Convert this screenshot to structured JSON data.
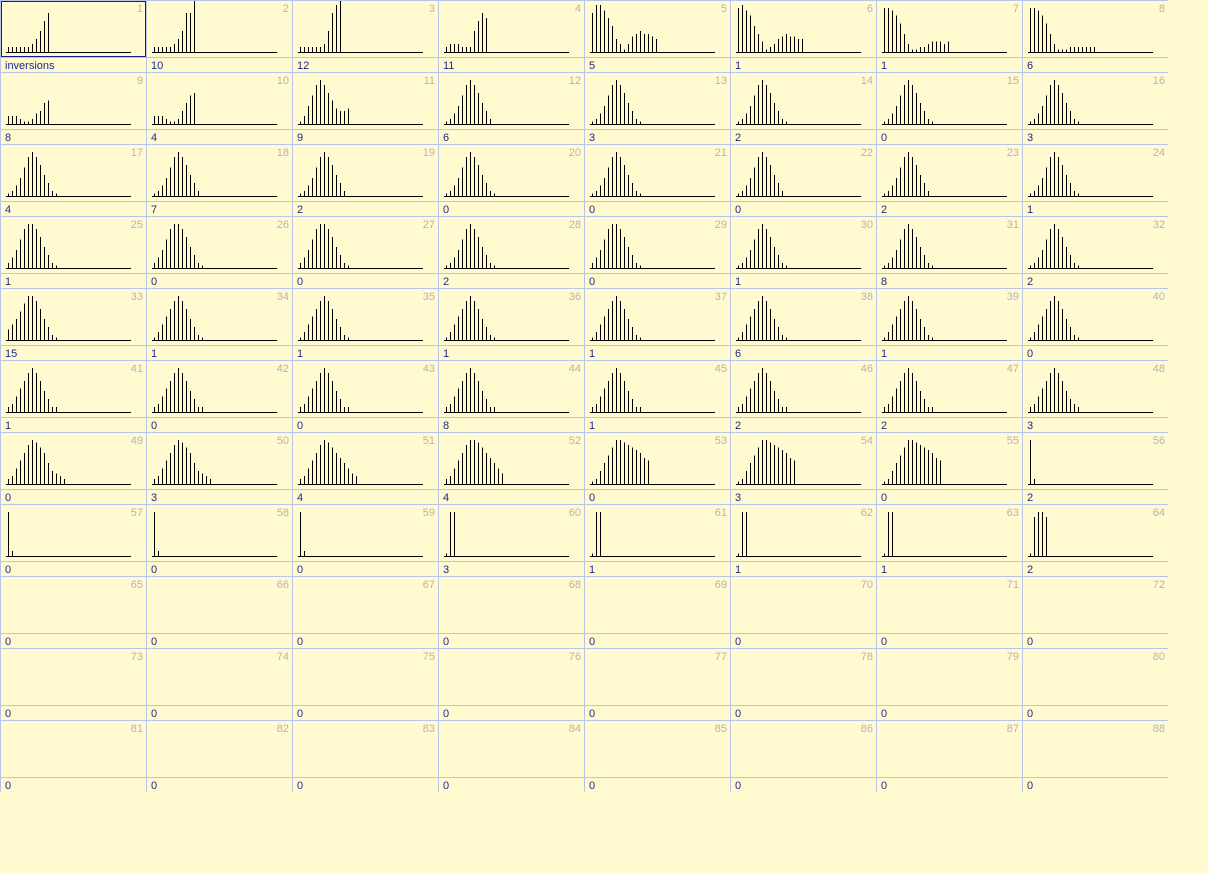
{
  "grid": {
    "columns": 8,
    "selected_index": 1,
    "cells": [
      {
        "index": "1",
        "value": "inversions",
        "bars": [
          2,
          2,
          2,
          2,
          2,
          2,
          3,
          5,
          8,
          12,
          15
        ]
      },
      {
        "index": "2",
        "value": "10",
        "bars": [
          2,
          2,
          2,
          2,
          2,
          3,
          5,
          8,
          15,
          15,
          20
        ]
      },
      {
        "index": "3",
        "value": "12",
        "bars": [
          2,
          2,
          2,
          2,
          2,
          2,
          3,
          8,
          15,
          18,
          20
        ]
      },
      {
        "index": "4",
        "value": "11",
        "bars": [
          2,
          3,
          3,
          3,
          2,
          2,
          2,
          8,
          12,
          15,
          13
        ]
      },
      {
        "index": "5",
        "value": "5",
        "bars": [
          15,
          18,
          18,
          16,
          13,
          10,
          5,
          3,
          1,
          3,
          6,
          7,
          8,
          7,
          7,
          6,
          5
        ]
      },
      {
        "index": "6",
        "value": "1",
        "bars": [
          17,
          18,
          16,
          14,
          10,
          7,
          4,
          1,
          2,
          3,
          5,
          6,
          7,
          6,
          6,
          5,
          5
        ]
      },
      {
        "index": "7",
        "value": "1",
        "bars": [
          17,
          17,
          16,
          14,
          11,
          7,
          3,
          1,
          1,
          2,
          2,
          3,
          4,
          4,
          4,
          3,
          4
        ]
      },
      {
        "index": "8",
        "value": "6",
        "bars": [
          17,
          17,
          16,
          14,
          11,
          7,
          3,
          1,
          1,
          1,
          2,
          2,
          2,
          2,
          2,
          2,
          2
        ]
      },
      {
        "index": "9",
        "value": "8",
        "bars": [
          3,
          3,
          3,
          2,
          1,
          1,
          2,
          4,
          5,
          8,
          9
        ]
      },
      {
        "index": "10",
        "value": "4",
        "bars": [
          3,
          3,
          3,
          2,
          1,
          1,
          2,
          5,
          8,
          11,
          12
        ]
      },
      {
        "index": "11",
        "value": "9",
        "bars": [
          1,
          3,
          7,
          11,
          15,
          17,
          15,
          12,
          9,
          6,
          5,
          5,
          6
        ]
      },
      {
        "index": "12",
        "value": "6",
        "bars": [
          1,
          2,
          4,
          7,
          11,
          15,
          17,
          15,
          12,
          8,
          5,
          2
        ]
      },
      {
        "index": "13",
        "value": "3",
        "bars": [
          1,
          2,
          4,
          7,
          11,
          15,
          17,
          15,
          12,
          8,
          5,
          2,
          1
        ]
      },
      {
        "index": "14",
        "value": "2",
        "bars": [
          1,
          2,
          4,
          7,
          11,
          15,
          17,
          15,
          12,
          8,
          5,
          2,
          1
        ]
      },
      {
        "index": "15",
        "value": "0",
        "bars": [
          1,
          2,
          4,
          7,
          11,
          15,
          17,
          15,
          12,
          8,
          5,
          2,
          1
        ]
      },
      {
        "index": "16",
        "value": "3",
        "bars": [
          1,
          2,
          4,
          7,
          11,
          15,
          17,
          15,
          12,
          8,
          5,
          2,
          1
        ]
      },
      {
        "index": "17",
        "value": "4",
        "bars": [
          1,
          2,
          4,
          7,
          11,
          15,
          17,
          15,
          12,
          8,
          5,
          2,
          1
        ]
      },
      {
        "index": "18",
        "value": "7",
        "bars": [
          1,
          2,
          4,
          7,
          11,
          15,
          17,
          15,
          12,
          8,
          5,
          2
        ]
      },
      {
        "index": "19",
        "value": "2",
        "bars": [
          1,
          2,
          4,
          7,
          11,
          15,
          17,
          15,
          12,
          8,
          5,
          2
        ]
      },
      {
        "index": "20",
        "value": "0",
        "bars": [
          1,
          2,
          4,
          7,
          11,
          15,
          17,
          15,
          12,
          8,
          5,
          2,
          1
        ]
      },
      {
        "index": "21",
        "value": "0",
        "bars": [
          1,
          2,
          4,
          7,
          11,
          15,
          17,
          15,
          12,
          8,
          5,
          2,
          1
        ]
      },
      {
        "index": "22",
        "value": "0",
        "bars": [
          1,
          2,
          4,
          7,
          11,
          15,
          17,
          15,
          12,
          8,
          5,
          2
        ]
      },
      {
        "index": "23",
        "value": "2",
        "bars": [
          1,
          2,
          4,
          7,
          11,
          15,
          17,
          15,
          12,
          8,
          5,
          2
        ]
      },
      {
        "index": "24",
        "value": "1",
        "bars": [
          1,
          2,
          4,
          7,
          11,
          15,
          17,
          15,
          12,
          8,
          5,
          2,
          1
        ]
      },
      {
        "index": "25",
        "value": "1",
        "bars": [
          2,
          4,
          7,
          11,
          15,
          17,
          17,
          15,
          12,
          8,
          5,
          2,
          1
        ]
      },
      {
        "index": "26",
        "value": "0",
        "bars": [
          2,
          4,
          7,
          11,
          15,
          17,
          17,
          15,
          12,
          8,
          5,
          2,
          1
        ]
      },
      {
        "index": "27",
        "value": "0",
        "bars": [
          2,
          4,
          7,
          11,
          15,
          17,
          17,
          15,
          12,
          8,
          5,
          2,
          1
        ]
      },
      {
        "index": "28",
        "value": "2",
        "bars": [
          1,
          2,
          4,
          7,
          11,
          15,
          17,
          15,
          12,
          8,
          5,
          2,
          1
        ]
      },
      {
        "index": "29",
        "value": "0",
        "bars": [
          2,
          4,
          7,
          11,
          15,
          17,
          17,
          15,
          12,
          8,
          5,
          2,
          1
        ]
      },
      {
        "index": "30",
        "value": "1",
        "bars": [
          1,
          2,
          4,
          7,
          11,
          15,
          17,
          15,
          12,
          8,
          5,
          2,
          1
        ]
      },
      {
        "index": "31",
        "value": "8",
        "bars": [
          1,
          2,
          4,
          7,
          11,
          15,
          17,
          15,
          12,
          8,
          5,
          2,
          1
        ]
      },
      {
        "index": "32",
        "value": "2",
        "bars": [
          1,
          2,
          4,
          7,
          11,
          15,
          17,
          15,
          12,
          8,
          5,
          2,
          1
        ]
      },
      {
        "index": "33",
        "value": "15",
        "bars": [
          4,
          6,
          8,
          11,
          14,
          17,
          17,
          15,
          12,
          8,
          5,
          2,
          1
        ]
      },
      {
        "index": "34",
        "value": "1",
        "bars": [
          1,
          3,
          6,
          9,
          12,
          15,
          17,
          15,
          12,
          8,
          5,
          2,
          1
        ]
      },
      {
        "index": "35",
        "value": "1",
        "bars": [
          1,
          3,
          6,
          9,
          12,
          15,
          17,
          15,
          12,
          8,
          5,
          2,
          1
        ]
      },
      {
        "index": "36",
        "value": "1",
        "bars": [
          1,
          3,
          6,
          9,
          12,
          15,
          17,
          15,
          12,
          8,
          5,
          2,
          1
        ]
      },
      {
        "index": "37",
        "value": "1",
        "bars": [
          1,
          3,
          6,
          9,
          12,
          15,
          17,
          15,
          12,
          8,
          5,
          2,
          1
        ]
      },
      {
        "index": "38",
        "value": "6",
        "bars": [
          1,
          3,
          6,
          9,
          12,
          15,
          17,
          15,
          12,
          8,
          5,
          2,
          1
        ]
      },
      {
        "index": "39",
        "value": "1",
        "bars": [
          1,
          3,
          6,
          9,
          12,
          15,
          17,
          15,
          12,
          8,
          5,
          2,
          1
        ]
      },
      {
        "index": "40",
        "value": "0",
        "bars": [
          1,
          3,
          6,
          9,
          12,
          15,
          17,
          15,
          12,
          8,
          5,
          2,
          1
        ]
      },
      {
        "index": "41",
        "value": "1",
        "bars": [
          2,
          3,
          6,
          9,
          12,
          15,
          17,
          15,
          12,
          8,
          5,
          2,
          2
        ]
      },
      {
        "index": "42",
        "value": "0",
        "bars": [
          2,
          3,
          6,
          9,
          12,
          15,
          17,
          15,
          12,
          8,
          5,
          2,
          2
        ]
      },
      {
        "index": "43",
        "value": "0",
        "bars": [
          2,
          3,
          6,
          9,
          12,
          15,
          17,
          15,
          12,
          8,
          5,
          2,
          2
        ]
      },
      {
        "index": "44",
        "value": "8",
        "bars": [
          2,
          3,
          6,
          9,
          12,
          15,
          17,
          15,
          12,
          8,
          5,
          2,
          2
        ]
      },
      {
        "index": "45",
        "value": "1",
        "bars": [
          2,
          3,
          6,
          9,
          12,
          15,
          17,
          15,
          12,
          8,
          5,
          2,
          2
        ]
      },
      {
        "index": "46",
        "value": "2",
        "bars": [
          2,
          3,
          6,
          9,
          12,
          15,
          17,
          15,
          12,
          8,
          5,
          2,
          2
        ]
      },
      {
        "index": "47",
        "value": "2",
        "bars": [
          2,
          3,
          6,
          9,
          12,
          15,
          17,
          15,
          12,
          8,
          5,
          2,
          2
        ]
      },
      {
        "index": "48",
        "value": "3",
        "bars": [
          2,
          3,
          6,
          9,
          12,
          15,
          17,
          15,
          12,
          8,
          5,
          3,
          2
        ]
      },
      {
        "index": "49",
        "value": "0",
        "bars": [
          2,
          3,
          6,
          9,
          12,
          15,
          17,
          16,
          14,
          12,
          8,
          5,
          4,
          3,
          2
        ]
      },
      {
        "index": "50",
        "value": "3",
        "bars": [
          2,
          3,
          6,
          9,
          12,
          15,
          17,
          16,
          14,
          12,
          8,
          5,
          4,
          3,
          2
        ]
      },
      {
        "index": "51",
        "value": "4",
        "bars": [
          2,
          3,
          6,
          9,
          12,
          15,
          17,
          16,
          14,
          12,
          10,
          8,
          6,
          4,
          3
        ]
      },
      {
        "index": "52",
        "value": "4",
        "bars": [
          2,
          3,
          6,
          9,
          12,
          15,
          17,
          17,
          16,
          14,
          12,
          10,
          8,
          6,
          4
        ]
      },
      {
        "index": "53",
        "value": "0",
        "bars": [
          1,
          2,
          5,
          8,
          11,
          14,
          17,
          17,
          16,
          15,
          14,
          13,
          12,
          10,
          9
        ]
      },
      {
        "index": "54",
        "value": "3",
        "bars": [
          1,
          2,
          5,
          8,
          11,
          14,
          17,
          17,
          16,
          15,
          14,
          13,
          12,
          10,
          9
        ]
      },
      {
        "index": "55",
        "value": "0",
        "bars": [
          1,
          2,
          5,
          8,
          11,
          14,
          17,
          17,
          16,
          15,
          14,
          13,
          12,
          10,
          9
        ]
      },
      {
        "index": "56",
        "value": "2",
        "bars": [
          17,
          2
        ]
      },
      {
        "index": "57",
        "value": "0",
        "bars": [
          17,
          2
        ]
      },
      {
        "index": "58",
        "value": "0",
        "bars": [
          17,
          2
        ]
      },
      {
        "index": "59",
        "value": "0",
        "bars": [
          17,
          2
        ]
      },
      {
        "index": "60",
        "value": "3",
        "bars": [
          1,
          17,
          17
        ]
      },
      {
        "index": "61",
        "value": "1",
        "bars": [
          1,
          17,
          17
        ]
      },
      {
        "index": "62",
        "value": "1",
        "bars": [
          1,
          17,
          17
        ]
      },
      {
        "index": "63",
        "value": "1",
        "bars": [
          1,
          17,
          17
        ]
      },
      {
        "index": "64",
        "value": "2",
        "bars": [
          1,
          15,
          17,
          17,
          15
        ]
      },
      {
        "index": "65",
        "value": "0",
        "bars": []
      },
      {
        "index": "66",
        "value": "0",
        "bars": []
      },
      {
        "index": "67",
        "value": "0",
        "bars": []
      },
      {
        "index": "68",
        "value": "0",
        "bars": []
      },
      {
        "index": "69",
        "value": "0",
        "bars": []
      },
      {
        "index": "70",
        "value": "0",
        "bars": []
      },
      {
        "index": "71",
        "value": "0",
        "bars": []
      },
      {
        "index": "72",
        "value": "0",
        "bars": []
      },
      {
        "index": "73",
        "value": "0",
        "bars": []
      },
      {
        "index": "74",
        "value": "0",
        "bars": []
      },
      {
        "index": "75",
        "value": "0",
        "bars": []
      },
      {
        "index": "76",
        "value": "0",
        "bars": []
      },
      {
        "index": "77",
        "value": "0",
        "bars": []
      },
      {
        "index": "78",
        "value": "0",
        "bars": []
      },
      {
        "index": "79",
        "value": "0",
        "bars": []
      },
      {
        "index": "80",
        "value": "0",
        "bars": []
      },
      {
        "index": "81",
        "value": "0",
        "bars": []
      },
      {
        "index": "82",
        "value": "0",
        "bars": []
      },
      {
        "index": "83",
        "value": "0",
        "bars": []
      },
      {
        "index": "84",
        "value": "0",
        "bars": []
      },
      {
        "index": "85",
        "value": "0",
        "bars": []
      },
      {
        "index": "86",
        "value": "0",
        "bars": []
      },
      {
        "index": "87",
        "value": "0",
        "bars": []
      },
      {
        "index": "88",
        "value": "0",
        "bars": []
      }
    ]
  },
  "colors": {
    "background": "#fffad0",
    "grid_line": "#b8c4e8",
    "index_text": "#b4b4b4",
    "value_text": "#1c2a8c",
    "selection_border": "#1a1a8c",
    "bar": "#000000"
  }
}
